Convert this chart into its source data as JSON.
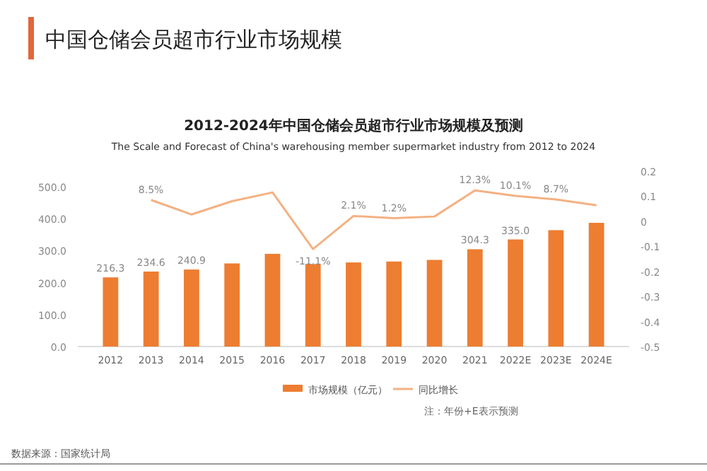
{
  "chart_data": {
    "type": "bar",
    "title": "2012-2024年中国仓储会员超市行业市场规模及预测",
    "subtitle": "The Scale and Forecast of China's warehousing member supermarket industry from 2012 to 2024",
    "categories": [
      "2012",
      "2013",
      "2014",
      "2015",
      "2016",
      "2017",
      "2018",
      "2019",
      "2020",
      "2021",
      "2022E",
      "2023E",
      "2024E"
    ],
    "series": [
      {
        "name": "市场规模（亿元）",
        "color": "#ed7d31",
        "values": [
          216.3,
          234.6,
          240.9,
          260,
          290,
          258,
          263,
          266,
          271,
          304.3,
          335.0,
          364,
          387
        ],
        "value_labels": [
          "216.3",
          "234.6",
          "240.9",
          null,
          null,
          null,
          null,
          null,
          null,
          "304.3",
          "335.0",
          null,
          null
        ]
      },
      {
        "name": "同比增长",
        "type": "line",
        "axis": "y2",
        "color": "#f4b183",
        "values": [
          null,
          0.085,
          0.027,
          0.08,
          0.115,
          -0.111,
          0.021,
          0.012,
          0.019,
          0.123,
          0.101,
          0.087,
          0.064
        ],
        "value_labels": [
          null,
          "8.5%",
          null,
          null,
          null,
          "-11.1%",
          "2.1%",
          "1.2%",
          null,
          "12.3%",
          "10.1%",
          "8.7%",
          null
        ]
      }
    ],
    "ylim": [
      0,
      500
    ],
    "yticks": [
      {
        "value": 0,
        "label": "0.0"
      },
      {
        "value": 100,
        "label": "100.0"
      },
      {
        "value": 200,
        "label": "200.0"
      },
      {
        "value": 300,
        "label": "300.0"
      },
      {
        "value": 400,
        "label": "400.0"
      },
      {
        "value": 500,
        "label": "500.0"
      }
    ],
    "y2lim": [
      -0.5,
      0.2
    ],
    "y2ticks": [
      -0.5,
      -0.4,
      -0.3,
      -0.2,
      -0.1,
      0,
      0.1,
      0.2
    ],
    "legend": "bottom",
    "annotations": [
      "中国仓储会员超市行业市场规模",
      "注：年份+E表示预测",
      "数据来源：国家统计局"
    ]
  }
}
